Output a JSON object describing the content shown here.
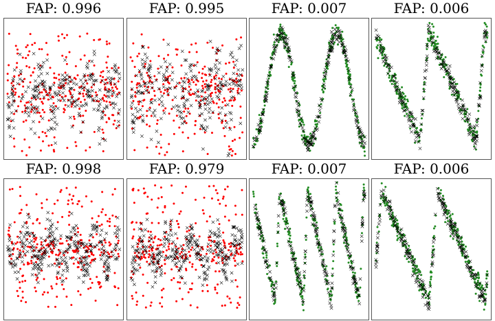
{
  "figure": {
    "description_free": true,
    "rows": 2,
    "cols": 4
  },
  "colors": {
    "noise": "#ff0000",
    "signal": "#228b22",
    "cross": "#000000",
    "frame": "#555555"
  },
  "chart_data": [
    {
      "type": "scatter",
      "title": "FAP: 0.996",
      "title_prefix": "FAP:",
      "fap": 0.996,
      "row": 0,
      "col": 0,
      "kind": "noise",
      "xlim": [
        0,
        1
      ],
      "ylim": [
        -1,
        1.3
      ],
      "xlabel": "",
      "ylabel": "",
      "band": 0.05,
      "band_width": 0.18,
      "point_spread": 1.05,
      "n_points": 280,
      "n_cross": 260,
      "seed": 11,
      "series": [
        {
          "name": "dots",
          "marker": "o"
        },
        {
          "name": "crosses",
          "marker": "x"
        }
      ]
    },
    {
      "type": "scatter",
      "title": "FAP: 0.995",
      "title_prefix": "FAP:",
      "fap": 0.995,
      "row": 0,
      "col": 1,
      "kind": "noise",
      "xlim": [
        0,
        1
      ],
      "ylim": [
        -1,
        1.3
      ],
      "xlabel": "",
      "ylabel": "",
      "band": 0.1,
      "band_width": 0.2,
      "point_spread": 1.05,
      "n_points": 280,
      "n_cross": 260,
      "seed": 23,
      "series": [
        {
          "name": "dots",
          "marker": "o"
        },
        {
          "name": "crosses",
          "marker": "x"
        }
      ]
    },
    {
      "type": "scatter",
      "title": "FAP: 0.007",
      "title_prefix": "FAP:",
      "fap": 0.007,
      "row": 0,
      "col": 2,
      "kind": "signal",
      "shape": "sine",
      "cycles": 2,
      "xlim": [
        0,
        1
      ],
      "ylim": [
        -1.15,
        1.15
      ],
      "xlabel": "",
      "ylabel": "",
      "noise": 0.09,
      "n_points": 340,
      "n_cross": 260,
      "seed": 37,
      "series": [
        {
          "name": "dots",
          "marker": "o"
        },
        {
          "name": "crosses",
          "marker": "x"
        }
      ]
    },
    {
      "type": "scatter",
      "title": "FAP: 0.006",
      "title_prefix": "FAP:",
      "fap": 0.006,
      "row": 0,
      "col": 3,
      "kind": "signal",
      "shape": "sawtooth",
      "cycles": 2,
      "phase": 0.1,
      "xlim": [
        0,
        1
      ],
      "ylim": [
        -1.15,
        1.15
      ],
      "xlabel": "",
      "ylabel": "",
      "noise": 0.1,
      "n_points": 320,
      "n_cross": 240,
      "seed": 41,
      "series": [
        {
          "name": "dots",
          "marker": "o"
        },
        {
          "name": "crosses",
          "marker": "x"
        }
      ]
    },
    {
      "type": "scatter",
      "title": "FAP: 0.998",
      "title_prefix": "FAP:",
      "fap": 0.998,
      "row": 1,
      "col": 0,
      "kind": "noise",
      "xlim": [
        0,
        1
      ],
      "ylim": [
        -1.2,
        1.2
      ],
      "xlabel": "",
      "ylabel": "",
      "band": 0.0,
      "band_width": 0.12,
      "point_spread": 1.1,
      "n_points": 300,
      "n_cross": 300,
      "seed": 53,
      "series": [
        {
          "name": "dots",
          "marker": "o"
        },
        {
          "name": "crosses",
          "marker": "x"
        }
      ]
    },
    {
      "type": "scatter",
      "title": "FAP: 0.979",
      "title_prefix": "FAP:",
      "fap": 0.979,
      "row": 1,
      "col": 1,
      "kind": "noise",
      "xlim": [
        0,
        1
      ],
      "ylim": [
        -1.2,
        1.2
      ],
      "xlabel": "",
      "ylabel": "",
      "band": -0.05,
      "band_width": 0.12,
      "point_spread": 1.1,
      "n_points": 300,
      "n_cross": 300,
      "seed": 67,
      "series": [
        {
          "name": "dots",
          "marker": "o"
        },
        {
          "name": "crosses",
          "marker": "x"
        }
      ]
    },
    {
      "type": "scatter",
      "title": "FAP: 0.007",
      "title_prefix": "FAP:",
      "fap": 0.007,
      "row": 1,
      "col": 2,
      "kind": "signal",
      "shape": "sawtooth",
      "cycles": 4,
      "phase": 0.05,
      "xlim": [
        0,
        1
      ],
      "ylim": [
        -1.15,
        1.15
      ],
      "xlabel": "",
      "ylabel": "",
      "noise": 0.09,
      "n_points": 330,
      "n_cross": 260,
      "seed": 79,
      "series": [
        {
          "name": "dots",
          "marker": "o"
        },
        {
          "name": "crosses",
          "marker": "x"
        }
      ]
    },
    {
      "type": "scatter",
      "title": "FAP: 0.006",
      "title_prefix": "FAP:",
      "fap": 0.006,
      "row": 1,
      "col": 3,
      "kind": "signal",
      "shape": "sawtooth",
      "cycles": 2,
      "phase": 0.02,
      "xlim": [
        0,
        1
      ],
      "ylim": [
        -1.15,
        1.15
      ],
      "xlabel": "",
      "ylabel": "",
      "noise": 0.1,
      "n_points": 320,
      "n_cross": 260,
      "seed": 97,
      "series": [
        {
          "name": "dots",
          "marker": "o"
        },
        {
          "name": "crosses",
          "marker": "x"
        }
      ]
    }
  ]
}
